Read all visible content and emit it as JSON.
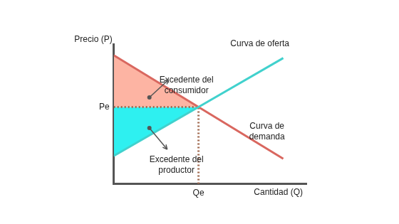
{
  "chart_data": {
    "type": "line",
    "xlabel": "Cantidad (Q)",
    "ylabel": "Precio (P)",
    "xlim": [
      0,
      10
    ],
    "ylim": [
      0,
      10
    ],
    "xticks": [
      {
        "value": 4.4,
        "label": "Qe"
      }
    ],
    "yticks": [
      {
        "value": 5.5,
        "label": "Pe"
      }
    ],
    "grid": false,
    "series": [
      {
        "name": "Curva de oferta",
        "color": "#41d1cd",
        "x": [
          0,
          4.4,
          8.8
        ],
        "values": [
          2.0,
          5.5,
          9.0
        ]
      },
      {
        "name": "Curva de demanda",
        "color": "#d9675f",
        "x": [
          0,
          4.4,
          8.8
        ],
        "values": [
          9.2,
          5.5,
          1.8
        ]
      }
    ],
    "areas": [
      {
        "name": "Excedente del consumidor",
        "color": "#fdb4a3",
        "x": [
          0,
          4.4
        ],
        "values": [
          9.2,
          5.5
        ],
        "base": 5.5
      },
      {
        "name": "Excedente del productor",
        "color": "#2ef0f0",
        "x": [
          0,
          4.4
        ],
        "values": [
          2.0,
          5.5
        ],
        "base": 5.5
      }
    ]
  }
}
